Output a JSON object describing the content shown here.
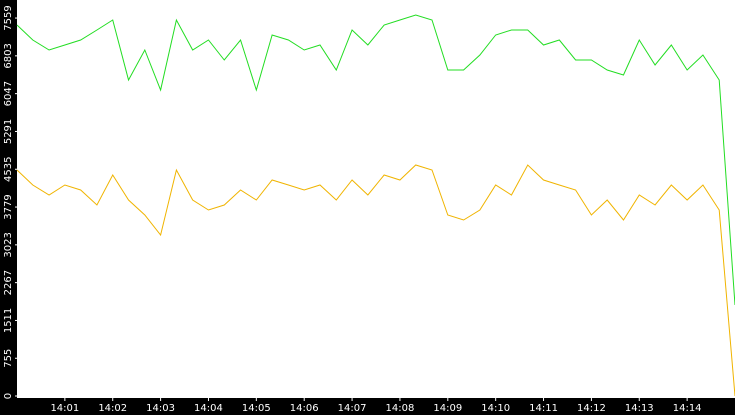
{
  "chart_data": {
    "type": "line",
    "x": [
      840,
      840.33,
      840.67,
      841,
      841.33,
      841.67,
      842,
      842.33,
      842.67,
      843,
      843.33,
      843.67,
      844,
      844.33,
      844.67,
      845,
      845.33,
      845.67,
      846,
      846.33,
      846.67,
      847,
      847.33,
      847.67,
      848,
      848.33,
      848.67,
      849,
      849.33,
      849.67,
      850,
      850.33,
      850.67,
      851,
      851.33,
      851.67,
      852,
      852.33,
      852.67,
      853,
      853.33,
      853.67,
      854,
      854.33,
      854.67,
      855
    ],
    "series": [
      {
        "color": "#22dd22",
        "values": [
          7420,
          7120,
          6920,
          7020,
          7120,
          7320,
          7520,
          6320,
          6920,
          6120,
          7520,
          6920,
          7120,
          6720,
          7120,
          6120,
          7220,
          7120,
          6920,
          7020,
          6520,
          7320,
          7020,
          7420,
          7520,
          7620,
          7520,
          6520,
          6520,
          6820,
          7220,
          7320,
          7320,
          7020,
          7120,
          6720,
          6720,
          6520,
          6420,
          7120,
          6620,
          7020,
          6520,
          6820,
          6320,
          1820
        ]
      },
      {
        "color": "#f0b400",
        "values": [
          4520,
          4220,
          4020,
          4220,
          4120,
          3820,
          4420,
          3920,
          3620,
          3220,
          4520,
          3920,
          3720,
          3820,
          4120,
          3920,
          4320,
          4220,
          4120,
          4220,
          3920,
          4320,
          4020,
          4420,
          4320,
          4620,
          4520,
          3620,
          3520,
          3720,
          4220,
          4020,
          4620,
          4320,
          4220,
          4120,
          3620,
          3920,
          3520,
          4020,
          3820,
          4220,
          3920,
          4220,
          3720,
          0
        ]
      }
    ],
    "xlim": [
      840,
      855
    ],
    "xticks": [
      {
        "value": 841,
        "label": "14:01"
      },
      {
        "value": 842,
        "label": "14:02"
      },
      {
        "value": 843,
        "label": "14:03"
      },
      {
        "value": 844,
        "label": "14:04"
      },
      {
        "value": 845,
        "label": "14:05"
      },
      {
        "value": 846,
        "label": "14:06"
      },
      {
        "value": 847,
        "label": "14:07"
      },
      {
        "value": 848,
        "label": "14:08"
      },
      {
        "value": 849,
        "label": "14:09"
      },
      {
        "value": 850,
        "label": "14:10"
      },
      {
        "value": 851,
        "label": "14:11"
      },
      {
        "value": 852,
        "label": "14:12"
      },
      {
        "value": 853,
        "label": "14:13"
      },
      {
        "value": 854,
        "label": "14:14"
      }
    ],
    "ylim": [
      -40,
      7920
    ],
    "yticks": [
      0,
      755,
      1511,
      2267,
      3023,
      3779,
      4535,
      5291,
      6047,
      6803,
      7559
    ]
  }
}
